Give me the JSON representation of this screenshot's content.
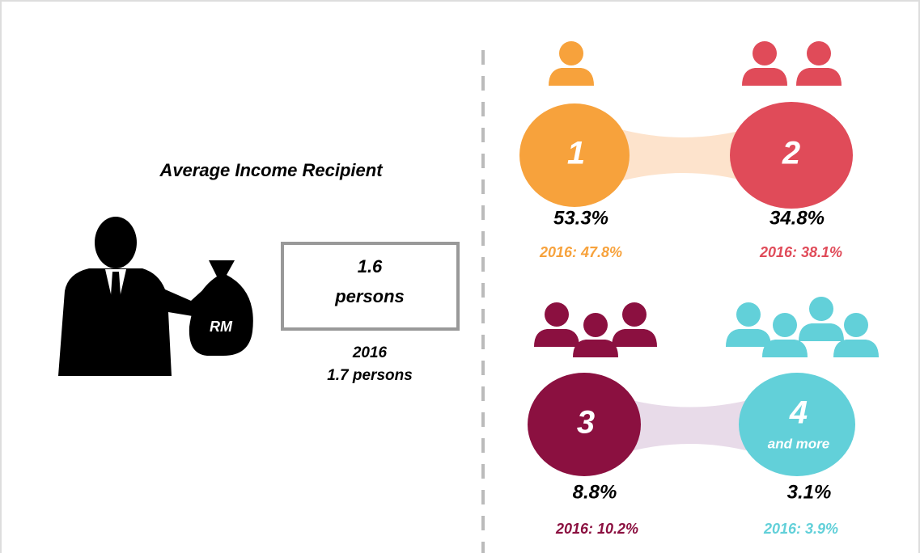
{
  "title": "Average Income Recipient",
  "icon_label": "RM",
  "average": {
    "value": "1.6",
    "unit": "persons"
  },
  "previous": {
    "year": "2016",
    "value": "1.7 persons"
  },
  "groups": [
    {
      "label": "1",
      "share": "53.3%",
      "previous": "2016: 47.8%"
    },
    {
      "label": "2",
      "share": "34.8%",
      "previous": "2016: 38.1%"
    },
    {
      "label": "3",
      "share": "8.8%",
      "previous": "2016: 10.2%"
    },
    {
      "label": "4",
      "sublabel": "and more",
      "share": "3.1%",
      "previous": "2016: 3.9%"
    }
  ]
}
